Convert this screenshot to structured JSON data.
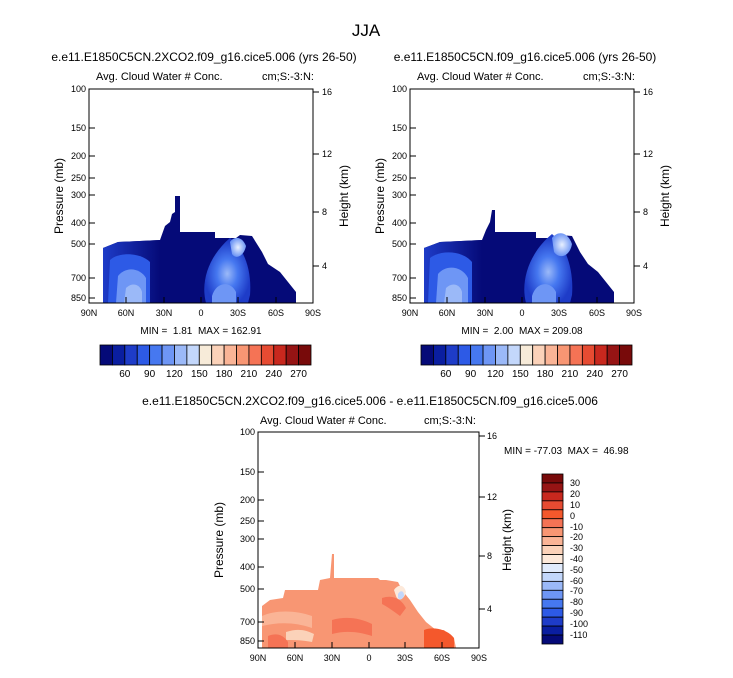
{
  "figure_title": "JJA",
  "colors": {
    "abs_scale": [
      "#050a78",
      "#0a1ea0",
      "#1e3cc8",
      "#2d5ae6",
      "#4678f0",
      "#6e96f5",
      "#9bb9f8",
      "#c3d7fb",
      "#f7ebd9",
      "#fbd2b9",
      "#fab496",
      "#f89673",
      "#f57355",
      "#e64b32",
      "#c8281e",
      "#961414",
      "#780a0a"
    ],
    "diff_scale": [
      "#050a78",
      "#0a1ea0",
      "#1e3cc8",
      "#2d5ae6",
      "#4678f0",
      "#6e96f5",
      "#9bb9f8",
      "#c3d7fb",
      "#e1ebfc",
      "#fde9da",
      "#fbd2b9",
      "#fab496",
      "#f89673",
      "#f57355",
      "#f4582c",
      "#e64b32",
      "#c8281e",
      "#961414",
      "#780a0a"
    ]
  },
  "chart_data": [
    {
      "type": "heatmap",
      "panel": "left",
      "title": "e.e11.E1850C5CN.2XCO2.f09_g16.cice5.006 (yrs 26-50)",
      "left_label": "Avg. Cloud Water # Conc.",
      "right_label": "cm;S:-3:N:",
      "ylabel": "Pressure (mb)",
      "ylabel2": "Height (km)",
      "x_ticks": [
        "90N",
        "60N",
        "30N",
        "0",
        "30S",
        "60S",
        "90S"
      ],
      "y_ticks": [
        "100",
        "150",
        "200",
        "250",
        "300",
        "400",
        "500",
        "700",
        "850"
      ],
      "y2_ticks": [
        "16",
        "12",
        "8",
        "4"
      ],
      "stats_min_label": "MIN =",
      "stats_min": "1.81",
      "stats_max_label": "MAX =",
      "stats_max": "162.91",
      "colorbar_labels": [
        "60",
        "90",
        "120",
        "150",
        "180",
        "210",
        "240",
        "270"
      ]
    },
    {
      "type": "heatmap",
      "panel": "right",
      "title": "e.e11.E1850C5CN.f09_g16.cice5.006 (yrs 26-50)",
      "left_label": "Avg. Cloud Water # Conc.",
      "right_label": "cm;S:-3:N:",
      "ylabel": "Pressure (mb)",
      "ylabel2": "Height (km)",
      "x_ticks": [
        "90N",
        "60N",
        "30N",
        "0",
        "30S",
        "60S",
        "90S"
      ],
      "y_ticks": [
        "100",
        "150",
        "200",
        "250",
        "300",
        "400",
        "500",
        "700",
        "850"
      ],
      "y2_ticks": [
        "16",
        "12",
        "8",
        "4"
      ],
      "stats_min_label": "MIN =",
      "stats_min": "2.00",
      "stats_max_label": "MAX =",
      "stats_max": "209.08",
      "colorbar_labels": [
        "60",
        "90",
        "120",
        "150",
        "180",
        "210",
        "240",
        "270"
      ]
    },
    {
      "type": "heatmap",
      "panel": "bottom",
      "title": "e.e11.E1850C5CN.2XCO2.f09_g16.cice5.006 - e.e11.E1850C5CN.f09_g16.cice5.006",
      "left_label": "Avg. Cloud Water # Conc.",
      "right_label": "cm;S:-3:N:",
      "ylabel": "Pressure (mb)",
      "ylabel2": "Height (km)",
      "x_ticks": [
        "90N",
        "60N",
        "30N",
        "0",
        "30S",
        "60S",
        "90S"
      ],
      "y_ticks": [
        "100",
        "150",
        "200",
        "250",
        "300",
        "400",
        "500",
        "700",
        "850"
      ],
      "y2_ticks": [
        "16",
        "12",
        "8",
        "4"
      ],
      "stats": "MIN = -77.03  MAX =  46.98",
      "colorbar_labels": [
        "30",
        "20",
        "10",
        "0",
        "-10",
        "-20",
        "-30",
        "-40",
        "-50",
        "-60",
        "-70",
        "-80",
        "-90",
        "-100",
        "-110"
      ]
    }
  ]
}
